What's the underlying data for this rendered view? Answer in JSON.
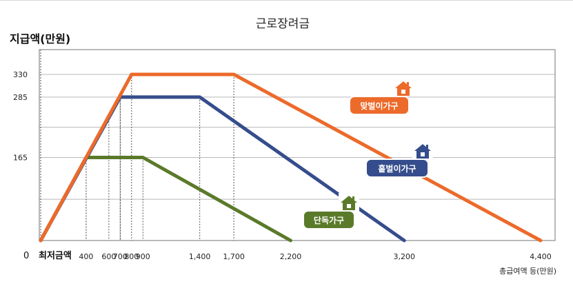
{
  "chart_data": {
    "type": "line",
    "title": "근로장려금",
    "ylabel": "지급액(만원)",
    "xlabel": "총급여액 등(만원)",
    "origin_label": "0",
    "origin_caption": "최저금액",
    "ylim": [
      0,
      360
    ],
    "xlim": [
      0,
      4500
    ],
    "yticks": [
      165,
      285,
      330
    ],
    "xticks": [
      400,
      600,
      700,
      800,
      900,
      1400,
      1700,
      2200,
      3200,
      4400
    ],
    "grid": true,
    "series": [
      {
        "name": "맞벌이가구",
        "color": "#ec6a2a",
        "x": [
          0,
          800,
          1700,
          4400
        ],
        "y": [
          0,
          330,
          330,
          0
        ]
      },
      {
        "name": "홑벌이가구",
        "color": "#354d8c",
        "x": [
          0,
          700,
          1400,
          3200
        ],
        "y": [
          0,
          285,
          285,
          0
        ]
      },
      {
        "name": "단독가구",
        "color": "#5a7a2a",
        "x": [
          0,
          400,
          900,
          2200
        ],
        "y": [
          0,
          165,
          165,
          0
        ]
      }
    ]
  }
}
